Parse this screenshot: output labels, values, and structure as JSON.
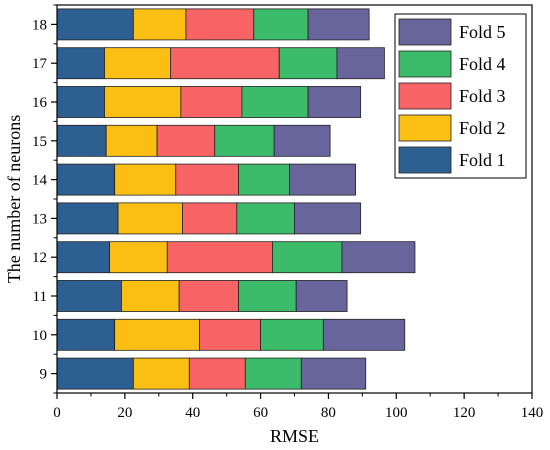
{
  "chart_data": {
    "type": "bar",
    "orientation": "horizontal",
    "stacked": true,
    "title": "",
    "xlabel": "RMSE",
    "ylabel": "The number of neurons",
    "xlim": [
      0,
      140
    ],
    "x_ticks": [
      0,
      20,
      40,
      60,
      80,
      100,
      120,
      140
    ],
    "categories": [
      "9",
      "10",
      "11",
      "12",
      "13",
      "14",
      "15",
      "16",
      "17",
      "18"
    ],
    "series": [
      {
        "name": "Fold 1",
        "color": "#2e5f92",
        "values": [
          22.5,
          17.0,
          19.0,
          15.5,
          18.0,
          17.0,
          14.5,
          14.0,
          14.0,
          22.5
        ]
      },
      {
        "name": "Fold 2",
        "color": "#fbbf13",
        "values": [
          16.5,
          25.0,
          17.0,
          17.0,
          19.0,
          18.0,
          15.0,
          22.5,
          19.5,
          15.5
        ]
      },
      {
        "name": "Fold 3",
        "color": "#f86466",
        "values": [
          16.5,
          18.0,
          17.5,
          31.0,
          16.0,
          18.5,
          17.0,
          18.0,
          32.0,
          20.0
        ]
      },
      {
        "name": "Fold 4",
        "color": "#3cbc6a",
        "values": [
          16.5,
          18.5,
          17.0,
          20.5,
          17.0,
          15.0,
          17.5,
          19.5,
          17.0,
          16.0
        ]
      },
      {
        "name": "Fold 5",
        "color": "#67659c",
        "values": [
          19.0,
          24.0,
          15.0,
          21.5,
          19.5,
          19.5,
          16.5,
          15.5,
          14.0,
          18.0
        ]
      }
    ],
    "legend_order": [
      "Fold 5",
      "Fold 4",
      "Fold 3",
      "Fold 2",
      "Fold 1"
    ],
    "legend_position": "top-right",
    "grid": false
  }
}
